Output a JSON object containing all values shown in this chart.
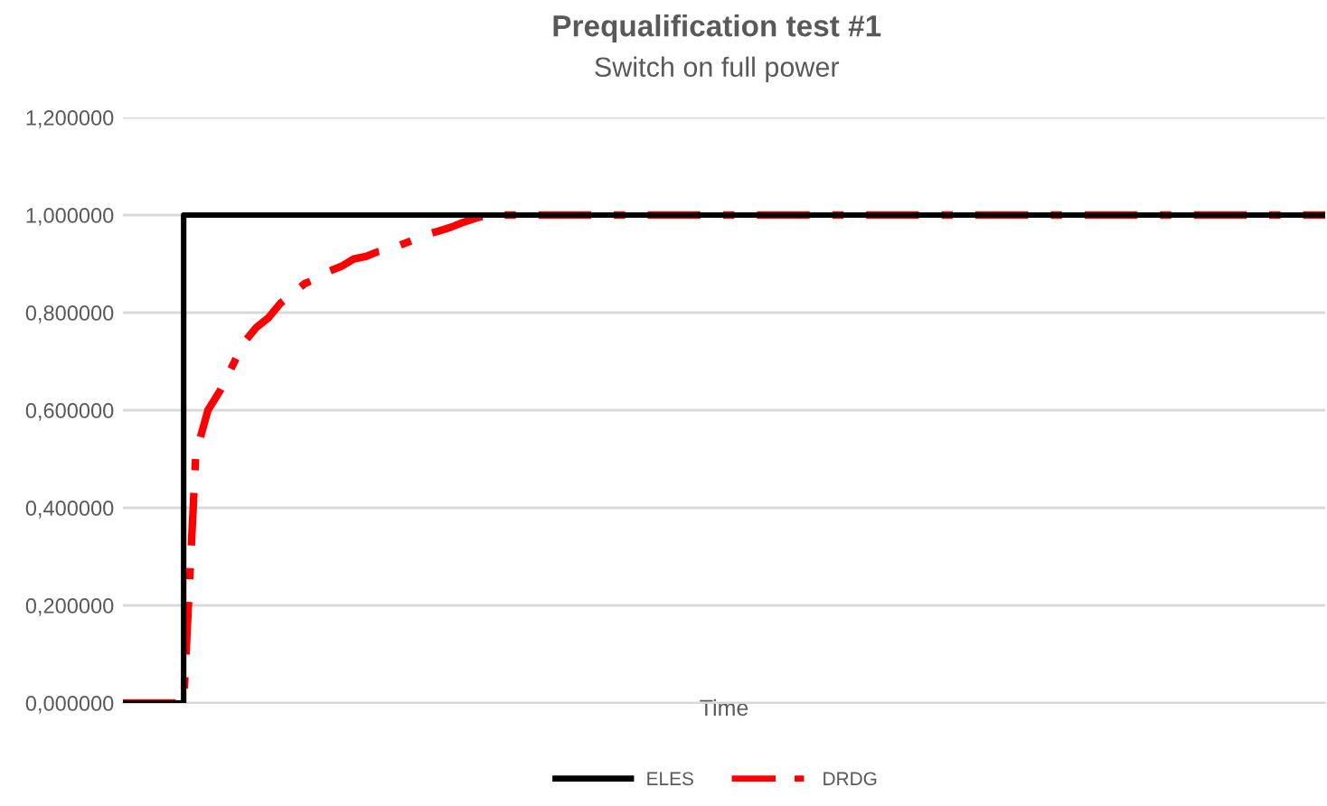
{
  "chart_data": {
    "type": "line",
    "title": "Prequalification test #1",
    "subtitle": "Switch on full power",
    "xlabel": "Time",
    "categories": [
      null,
      null,
      null,
      null,
      null,
      null,
      null,
      null,
      null,
      null,
      null,
      null,
      null,
      null,
      null,
      null,
      null,
      null,
      null,
      null,
      null,
      null,
      null,
      null,
      null,
      null,
      null,
      null,
      null,
      null,
      null,
      null,
      null,
      null,
      null,
      null,
      null,
      null,
      null,
      null,
      null,
      null,
      null,
      null,
      null,
      null,
      null,
      null,
      null,
      null,
      null,
      null,
      null,
      null,
      null,
      null,
      null,
      null,
      null,
      null,
      null,
      null,
      null,
      null,
      null,
      null,
      null,
      null,
      null,
      null,
      null,
      null,
      null,
      null,
      null,
      null,
      null,
      null,
      null,
      null,
      null,
      null,
      null,
      null,
      null,
      null,
      null,
      null,
      null,
      null,
      null,
      null,
      null,
      null,
      null,
      null,
      null,
      null,
      null,
      null
    ],
    "series": [
      {
        "name": "ELES",
        "type": "step",
        "color": "#000000",
        "line_style": "solid",
        "values": [
          0,
          0,
          0,
          0,
          0,
          1,
          1,
          1,
          1,
          1,
          1,
          1,
          1,
          1,
          1,
          1,
          1,
          1,
          1,
          1,
          1,
          1,
          1,
          1,
          1,
          1,
          1,
          1,
          1,
          1,
          1,
          1,
          1,
          1,
          1,
          1,
          1,
          1,
          1,
          1,
          1,
          1,
          1,
          1,
          1,
          1,
          1,
          1,
          1,
          1,
          1,
          1,
          1,
          1,
          1,
          1,
          1,
          1,
          1,
          1,
          1,
          1,
          1,
          1,
          1,
          1,
          1,
          1,
          1,
          1,
          1,
          1,
          1,
          1,
          1,
          1,
          1,
          1,
          1,
          1,
          1,
          1,
          1,
          1,
          1,
          1,
          1,
          1,
          1,
          1,
          1,
          1,
          1,
          1,
          1,
          1,
          1,
          1,
          1,
          1
        ]
      },
      {
        "name": "DRDG",
        "color": "#ff0000",
        "line_style": "dashdot",
        "values": [
          0,
          0,
          0,
          0,
          0,
          0,
          0.51,
          0.6,
          0.64,
          0.69,
          0.74,
          0.77,
          0.79,
          0.82,
          0.84,
          0.86,
          0.87,
          0.885,
          0.895,
          0.91,
          0.915,
          0.925,
          0.93,
          0.94,
          0.95,
          0.96,
          0.967,
          0.975,
          0.985,
          0.993,
          1,
          1,
          1,
          1,
          1,
          1,
          1,
          1,
          1,
          1,
          1,
          1,
          1,
          1,
          1,
          1,
          1,
          1,
          1,
          1,
          1,
          1,
          1,
          1,
          1,
          1,
          1,
          1,
          1,
          1,
          1,
          1,
          1,
          1,
          1,
          1,
          1,
          1,
          1,
          1,
          1,
          1,
          1,
          1,
          1,
          1,
          1,
          1,
          1,
          1,
          1,
          1,
          1,
          1,
          1,
          1,
          1,
          1,
          1,
          1,
          1,
          1,
          1,
          1,
          1,
          1,
          1,
          1,
          1,
          1
        ]
      }
    ],
    "ylim": [
      0,
      1.2
    ],
    "yticks": [
      {
        "value": 0,
        "label": "0,000000"
      },
      {
        "value": 0.2,
        "label": "0,200000"
      },
      {
        "value": 0.4,
        "label": "0,400000"
      },
      {
        "value": 0.6,
        "label": "0,600000"
      },
      {
        "value": 0.8,
        "label": "0,800000"
      },
      {
        "value": 1,
        "label": "1,000000"
      },
      {
        "value": 1.2,
        "label": "1,200000"
      }
    ],
    "grid": "y",
    "legend": "bottom"
  }
}
